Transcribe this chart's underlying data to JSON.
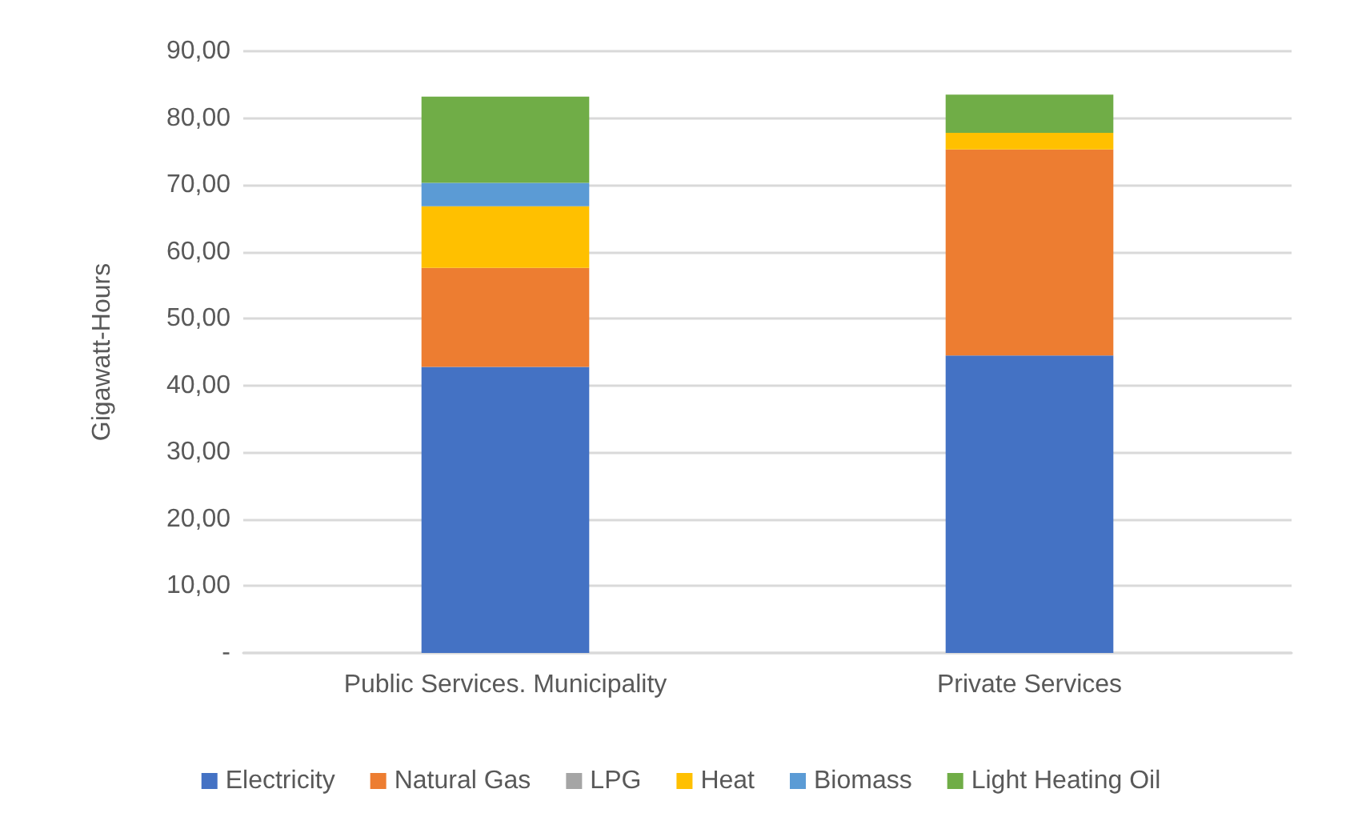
{
  "chart_data": {
    "type": "bar",
    "stacked": true,
    "ylabel": "Gigawatt-Hours",
    "categories": [
      "Public Services. Municipality",
      "Private Services"
    ],
    "series": [
      {
        "name": "Electricity",
        "color": "#4472c4",
        "values": [
          42.8,
          44.5
        ]
      },
      {
        "name": "Natural Gas",
        "color": "#ed7d31",
        "values": [
          14.8,
          30.8
        ]
      },
      {
        "name": "LPG",
        "color": "#a5a5a5",
        "values": [
          0,
          0
        ]
      },
      {
        "name": "Heat",
        "color": "#ffc000",
        "values": [
          9.2,
          2.5
        ]
      },
      {
        "name": "Biomass",
        "color": "#5b9bd5",
        "values": [
          3.5,
          0
        ]
      },
      {
        "name": "Light Heating Oil",
        "color": "#70ad47",
        "values": [
          12.9,
          5.7
        ]
      }
    ],
    "ylim": [
      0,
      90
    ],
    "yticks": [
      {
        "value": 0,
        "label": "-"
      },
      {
        "value": 10,
        "label": "10,00"
      },
      {
        "value": 20,
        "label": "20,00"
      },
      {
        "value": 30,
        "label": "30,00"
      },
      {
        "value": 40,
        "label": "40,00"
      },
      {
        "value": 50,
        "label": "50,00"
      },
      {
        "value": 60,
        "label": "60,00"
      },
      {
        "value": 70,
        "label": "70,00"
      },
      {
        "value": 80,
        "label": "80,00"
      },
      {
        "value": 90,
        "label": "90,00"
      }
    ],
    "grid": "y",
    "legend": "bottom"
  }
}
